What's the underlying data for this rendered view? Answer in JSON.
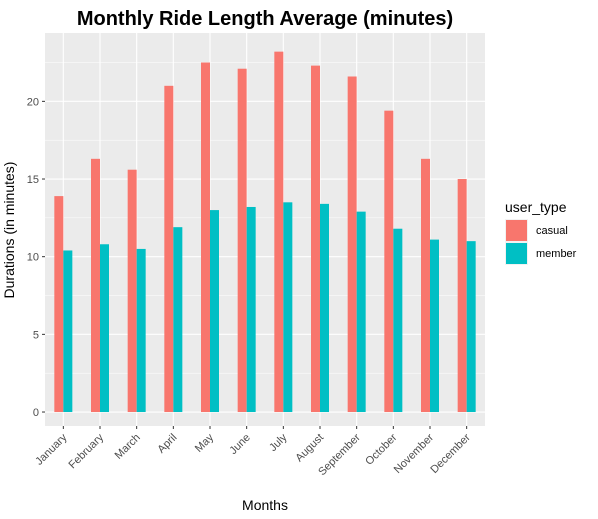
{
  "chart_data": {
    "type": "bar",
    "title": "Monthly Ride Length Average (minutes)",
    "xlabel": "Months",
    "ylabel": "Durations (in minutes)",
    "categories": [
      "January",
      "February",
      "March",
      "April",
      "May",
      "June",
      "July",
      "August",
      "September",
      "October",
      "November",
      "December"
    ],
    "series": [
      {
        "name": "casual",
        "color": "#F8766D",
        "values": [
          13.9,
          16.3,
          15.6,
          21.0,
          22.5,
          22.1,
          23.2,
          22.3,
          21.6,
          19.4,
          16.3,
          15.0
        ]
      },
      {
        "name": "member",
        "color": "#00BFC4",
        "values": [
          10.4,
          10.8,
          10.5,
          11.9,
          13.0,
          13.2,
          13.5,
          13.4,
          12.9,
          11.8,
          11.1,
          11.0
        ]
      }
    ],
    "ylim": [
      -0.9,
      24.4
    ],
    "yticks": [
      0,
      5,
      10,
      15,
      20
    ],
    "grid": true,
    "panel_background": "#EBEBEB",
    "legend": {
      "title": "user_type",
      "placement": "right"
    }
  }
}
